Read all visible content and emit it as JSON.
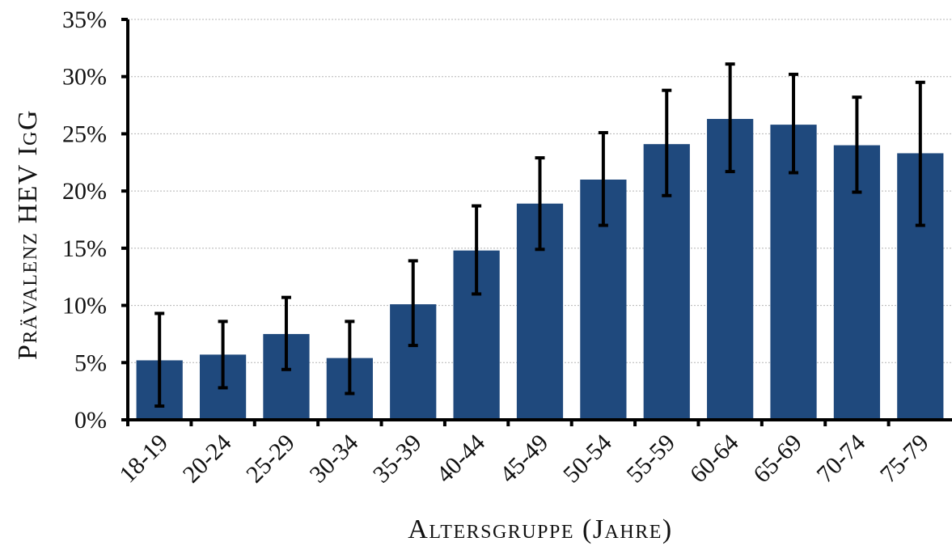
{
  "chart_data": {
    "type": "bar",
    "categories": [
      "18-19",
      "20-24",
      "25-29",
      "30-34",
      "35-39",
      "40-44",
      "45-49",
      "50-54",
      "55-59",
      "60-64",
      "65-69",
      "70-74",
      "75-79"
    ],
    "series": [
      {
        "values": [
          5.2,
          5.7,
          7.5,
          5.4,
          10.1,
          14.8,
          18.9,
          21.0,
          24.1,
          26.3,
          25.8,
          24.0,
          23.3
        ],
        "error_low": [
          1.2,
          2.8,
          4.4,
          2.3,
          6.5,
          11.0,
          14.9,
          17.0,
          19.6,
          21.7,
          21.6,
          19.9,
          17.0
        ],
        "error_high": [
          9.3,
          8.6,
          10.7,
          8.6,
          13.9,
          18.7,
          22.9,
          25.1,
          28.8,
          31.1,
          30.2,
          28.2,
          29.5
        ]
      }
    ],
    "ylim": [
      0,
      35
    ],
    "yticks": [
      "0%",
      "5%",
      "10%",
      "15%",
      "20%",
      "25%",
      "30%",
      "35%"
    ],
    "ylabel": "Prävalenz HEV IgG",
    "xlabel": "Altersgruppe (Jahre)",
    "grid": true,
    "colors": {
      "bar": "#1f497d",
      "error_bar": "#000000",
      "grid": "#b5b5b5"
    }
  }
}
